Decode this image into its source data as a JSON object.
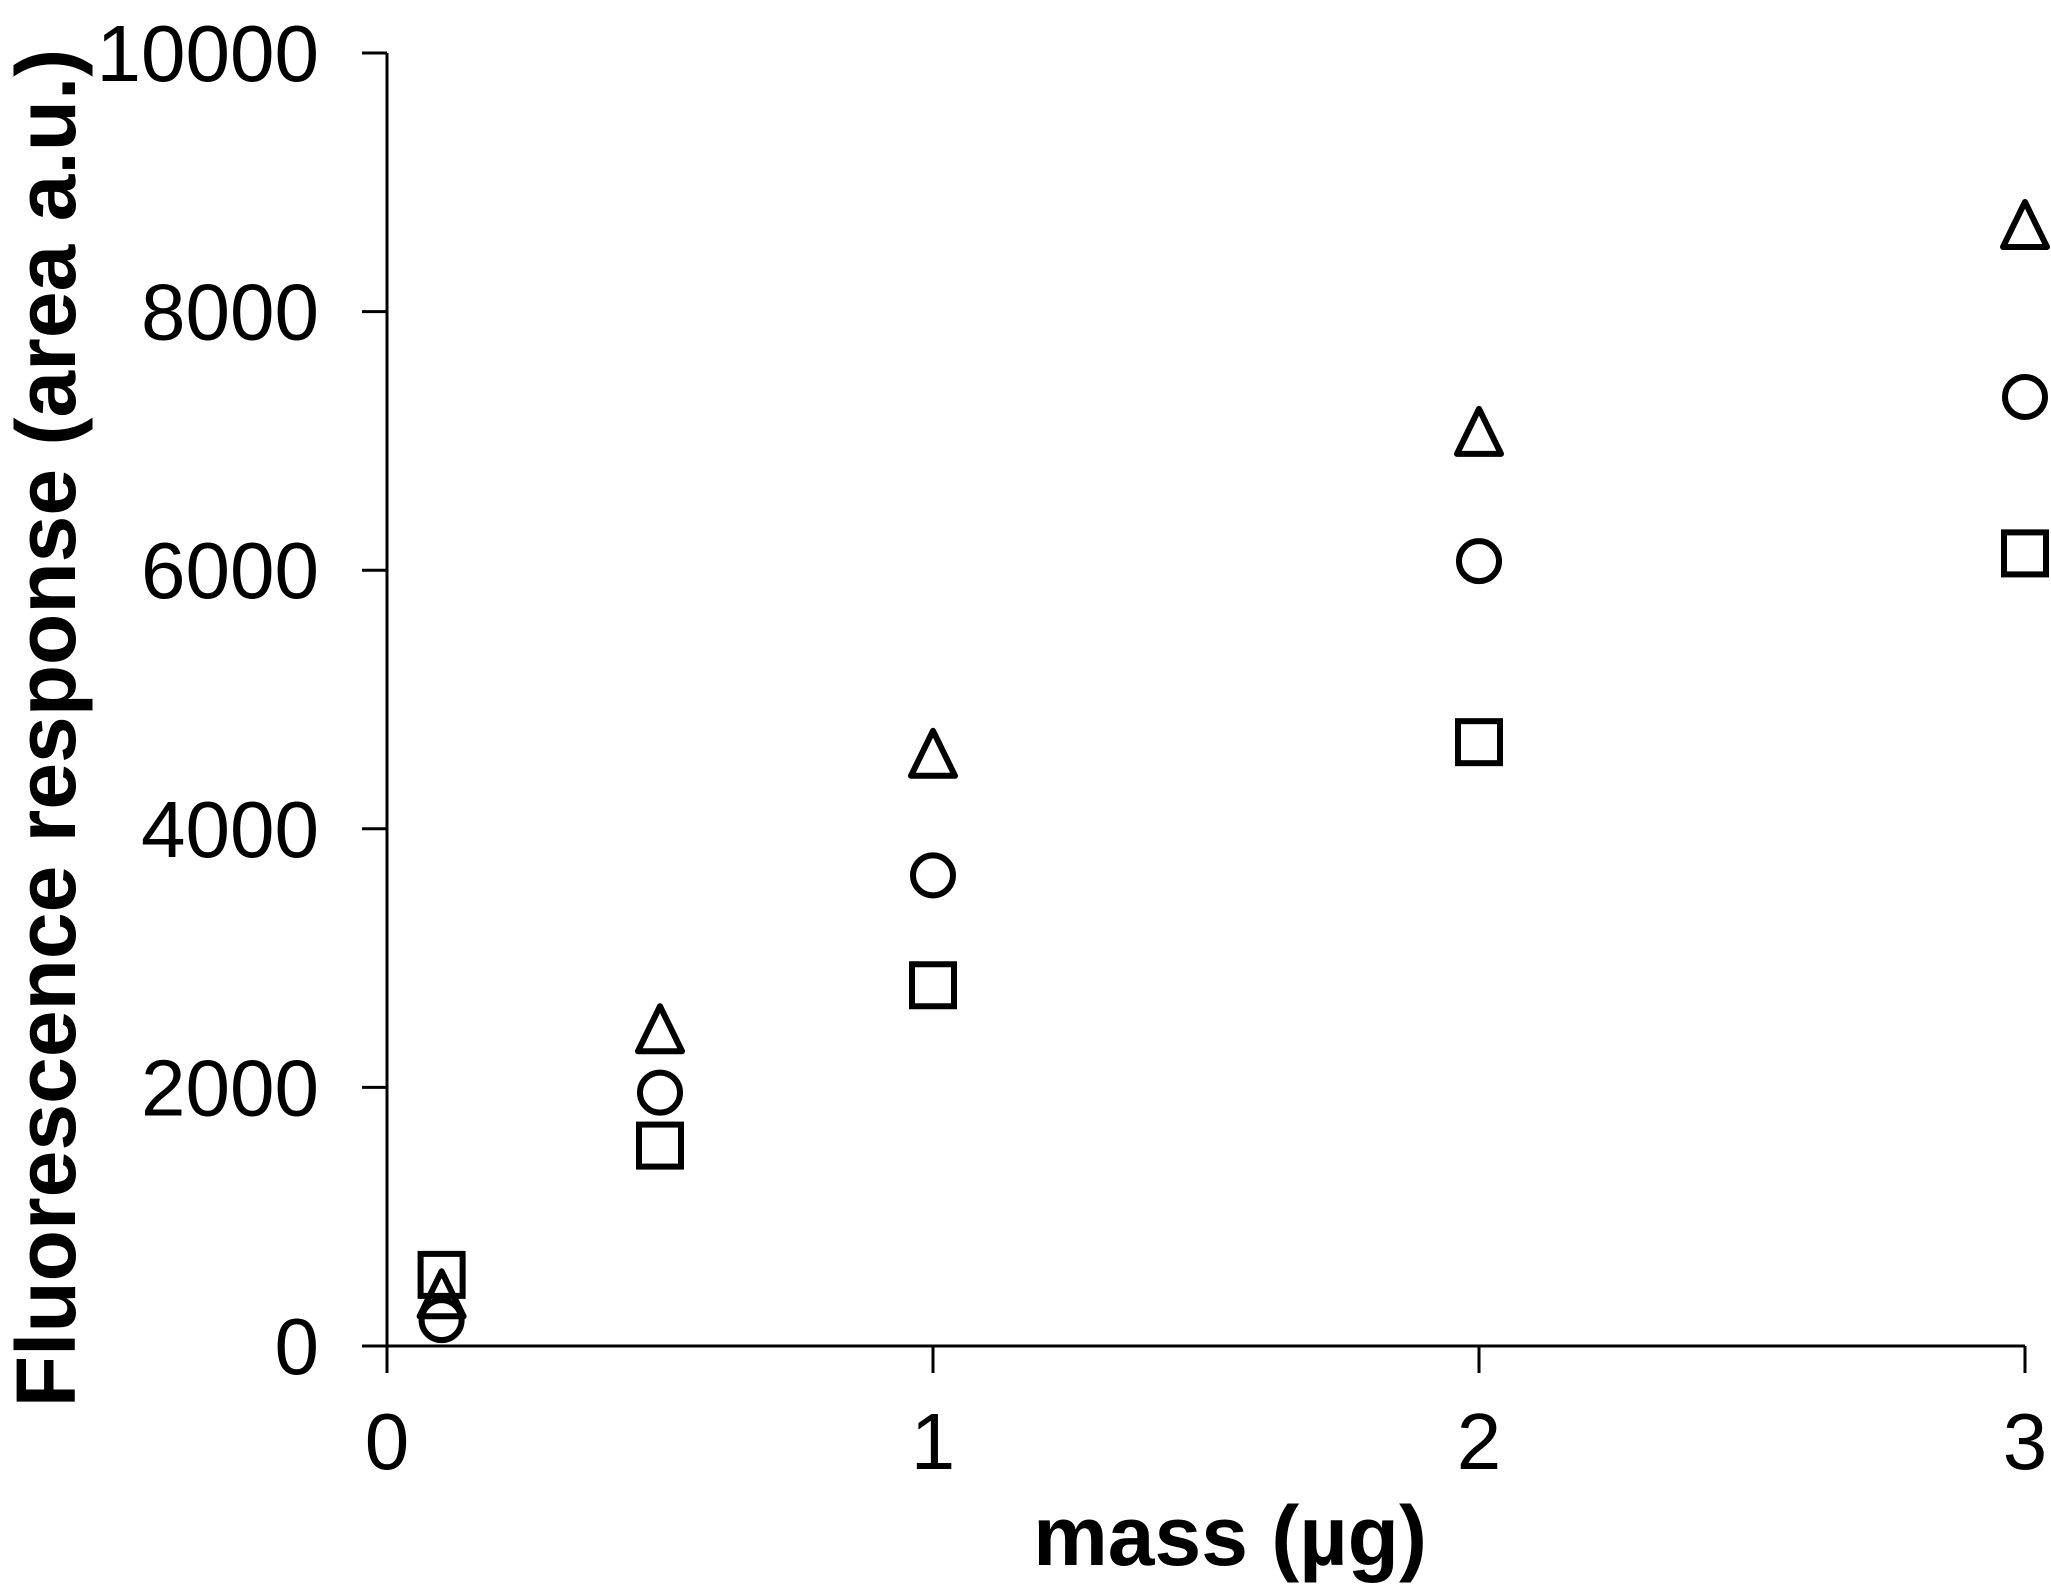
{
  "chart_data": {
    "type": "scatter",
    "title": "",
    "xlabel": "mass (µg)",
    "ylabel": "Fluorescence response (area a.u.)",
    "xlim": [
      0,
      3
    ],
    "ylim": [
      0,
      10000
    ],
    "x_ticks": [
      "0",
      "1",
      "2",
      "3"
    ],
    "y_ticks": [
      "0",
      "2000",
      "4000",
      "6000",
      "8000",
      "10000"
    ],
    "grid": false,
    "legend": "none",
    "x": [
      0.1,
      0.5,
      1,
      2,
      3
    ],
    "series": [
      {
        "name": "triangle",
        "marker": "triangle",
        "values": [
          400,
          2450,
          4580,
          7070,
          8670
        ]
      },
      {
        "name": "circle",
        "marker": "circle",
        "values": [
          200,
          1960,
          3640,
          6070,
          7340
        ]
      },
      {
        "name": "square",
        "marker": "square",
        "values": [
          550,
          1550,
          2790,
          4670,
          6130
        ]
      }
    ]
  },
  "colors": {
    "axis": "#000000",
    "marker_stroke": "#000000",
    "background": "#ffffff"
  }
}
